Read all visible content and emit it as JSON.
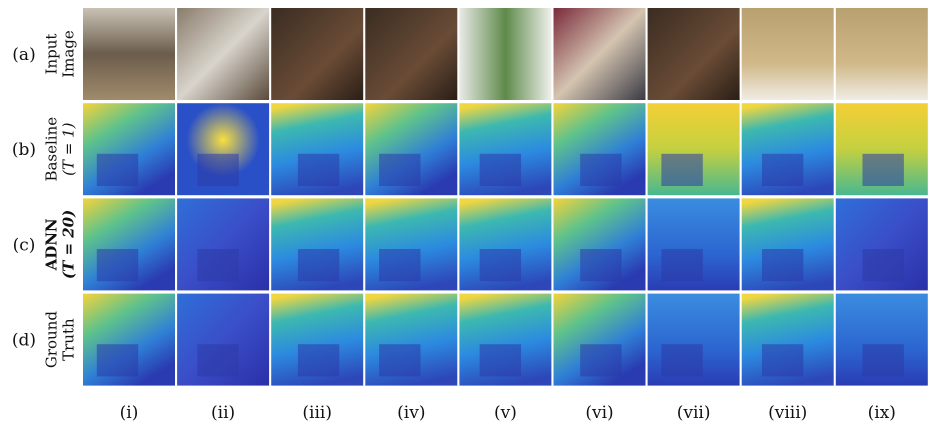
{
  "figure": {
    "rows": [
      {
        "id": "(a)",
        "label": [
          "Input",
          "Image"
        ]
      },
      {
        "id": "(b)",
        "label": [
          "Baseline",
          "(T = 1)"
        ]
      },
      {
        "id": "(c)",
        "label": [
          "ADNN",
          "(T = 20)"
        ]
      },
      {
        "id": "(d)",
        "label": [
          "Ground",
          "Truth"
        ]
      }
    ],
    "columns": [
      "(i)",
      "(ii)",
      "(iii)",
      "(iv)",
      "(v)",
      "(vi)",
      "(vii)",
      "(viii)",
      "(ix)"
    ]
  }
}
